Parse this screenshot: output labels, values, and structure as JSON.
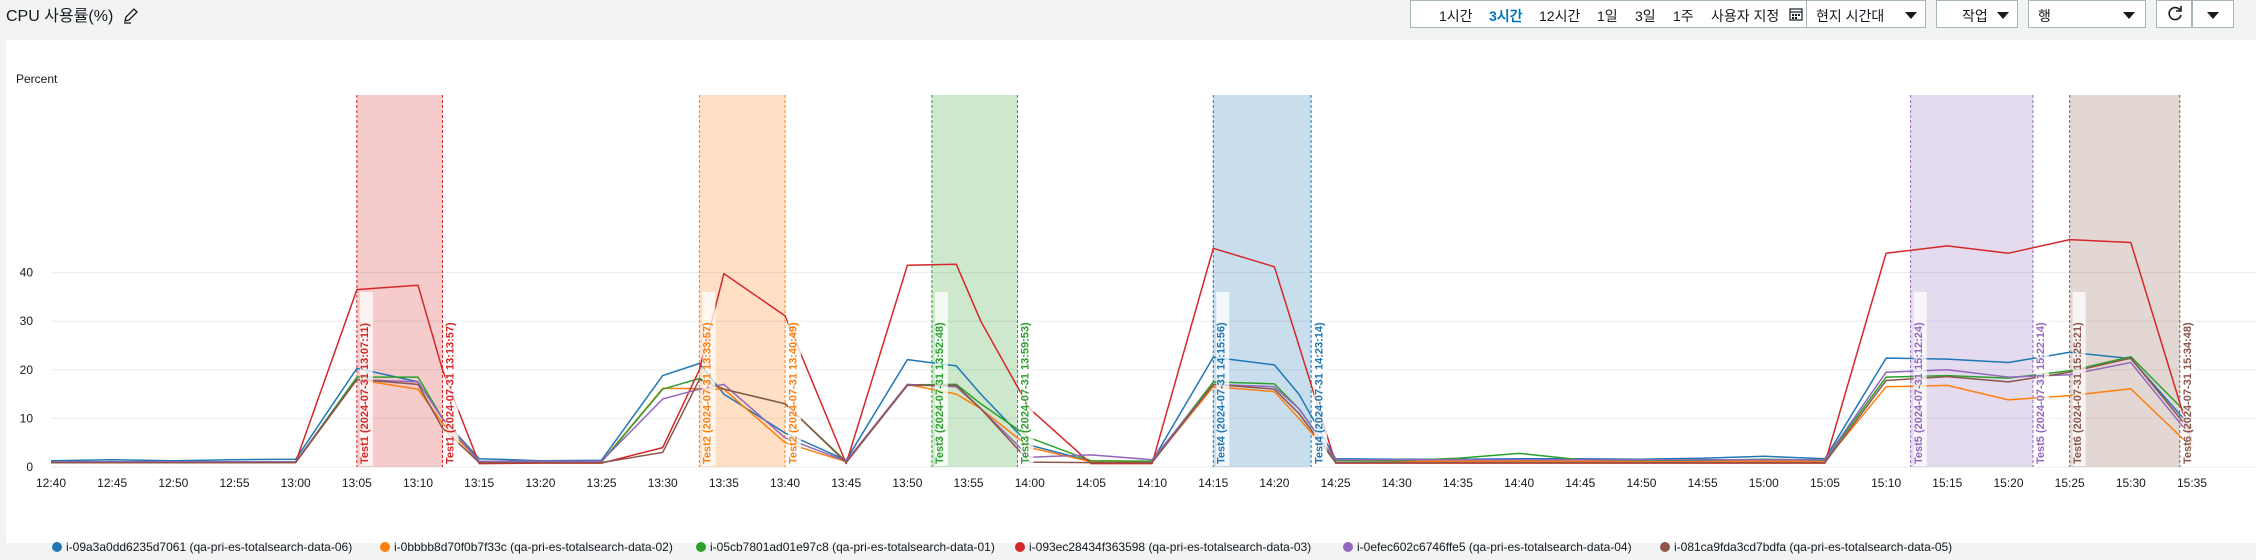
{
  "widget": {
    "title": "CPU 사용률(%)"
  },
  "toolbar": {
    "ranges": [
      {
        "label": "1시간",
        "active": false
      },
      {
        "label": "3시간",
        "active": true
      },
      {
        "label": "12시간",
        "active": false
      },
      {
        "label": "1일",
        "active": false
      },
      {
        "label": "3일",
        "active": false
      },
      {
        "label": "1주",
        "active": false
      },
      {
        "label": "사용자 지정",
        "active": false
      }
    ],
    "timezone_label": "현지 시간대",
    "actions_label": "작업",
    "view_label": "행"
  },
  "colors": {
    "accent": "#0073bb"
  },
  "chart_data": {
    "type": "line",
    "ylabel": "Percent",
    "ylim": [
      0,
      48
    ],
    "yticks": [
      0,
      10,
      20,
      30,
      40
    ],
    "x_labels": [
      "12:40",
      "12:45",
      "12:50",
      "12:55",
      "13:00",
      "13:05",
      "13:10",
      "13:15",
      "13:20",
      "13:25",
      "13:30",
      "13:35",
      "13:40",
      "13:45",
      "13:50",
      "13:55",
      "14:00",
      "14:05",
      "14:10",
      "14:15",
      "14:20",
      "14:25",
      "14:30",
      "14:35",
      "14:40",
      "14:45",
      "14:50",
      "14:55",
      "15:00",
      "15:05",
      "15:10",
      "15:15",
      "15:20",
      "15:25",
      "15:30",
      "15:35"
    ],
    "x": [
      "12:40",
      "12:45",
      "12:50",
      "12:55",
      "13:00",
      "13:05",
      "13:10",
      "13:12",
      "13:15",
      "13:20",
      "13:25",
      "13:30",
      "13:33",
      "13:35",
      "13:40",
      "13:45",
      "13:50",
      "13:54",
      "13:56",
      "14:00",
      "14:05",
      "14:10",
      "14:15",
      "14:20",
      "14:22",
      "14:25",
      "14:30",
      "14:35",
      "14:40",
      "14:45",
      "14:50",
      "14:55",
      "15:00",
      "15:05",
      "15:10",
      "15:15",
      "15:20",
      "15:25",
      "15:30",
      "15:35"
    ],
    "grid": true,
    "series": [
      {
        "name": "i-09a3a0dd6235d7061 (qa-pri-es-totalsearch-data-06)",
        "color": "#1f77b4",
        "values": [
          1.3,
          1.5,
          1.3,
          1.5,
          1.6,
          20.3,
          17.5,
          10,
          1.7,
          1.3,
          1.4,
          18.8,
          21.3,
          15,
          7,
          1.4,
          22.1,
          20.8,
          15,
          4.5,
          1.2,
          1.2,
          22.6,
          21,
          15,
          1.7,
          1.6,
          1.6,
          1.7,
          1.7,
          1.6,
          1.8,
          2.2,
          1.7,
          22.4,
          22.2,
          21.5,
          23.6,
          22.3,
          8
        ]
      },
      {
        "name": "i-0bbbb8d70f0b7f33c (qa-pri-es-totalsearch-data-02)",
        "color": "#ff7f0e",
        "values": [
          0.9,
          0.9,
          0.9,
          0.9,
          0.9,
          18,
          16,
          9,
          1.2,
          1.1,
          1.1,
          16.2,
          16.1,
          16,
          5,
          1.1,
          17,
          15,
          12,
          4,
          1.1,
          1.1,
          16.5,
          15.5,
          10,
          1.3,
          1.2,
          1.2,
          1.2,
          1.2,
          1.2,
          1.2,
          1.2,
          1.2,
          16.5,
          16.8,
          13.8,
          14.7,
          16.1,
          4
        ]
      },
      {
        "name": "i-05cb7801ad01e97c8 (qa-pri-es-totalsearch-data-01)",
        "color": "#2ca02c",
        "values": [
          0.9,
          0.9,
          0.9,
          0.9,
          1,
          18.5,
          18.5,
          10,
          1.1,
          1,
          1,
          16,
          18.2,
          16,
          13,
          1.1,
          16.9,
          17,
          13,
          6,
          1.3,
          1.2,
          17.5,
          17.1,
          12,
          1.3,
          1.3,
          1.8,
          2.8,
          1.5,
          1.4,
          1.4,
          1.6,
          1.4,
          18.5,
          18.8,
          18.3,
          19.8,
          22.7,
          10
        ]
      },
      {
        "name": "i-093ec28434f363598 (qa-pri-es-totalsearch-data-03)",
        "color": "#d62728",
        "values": [
          0.9,
          0.9,
          0.9,
          0.9,
          1,
          36.5,
          37.4,
          20,
          0.7,
          0.8,
          0.8,
          4,
          20,
          39.8,
          31.1,
          0.7,
          41.5,
          41.7,
          30,
          12,
          0.7,
          0.7,
          45,
          41.2,
          25,
          0.8,
          0.8,
          0.8,
          0.8,
          0.8,
          0.8,
          0.8,
          0.8,
          0.8,
          44,
          45.5,
          44,
          46.8,
          46.2,
          5
        ]
      },
      {
        "name": "i-0efec602c6746ffe5 (qa-pri-es-totalsearch-data-04)",
        "color": "#9467bd",
        "values": [
          1.1,
          1.1,
          1.1,
          1.1,
          1.1,
          18,
          17.5,
          10,
          1.2,
          1.2,
          1.2,
          14,
          16,
          17,
          6,
          1.2,
          17,
          16.5,
          12,
          2,
          2.5,
          1.5,
          17,
          16.5,
          12,
          1.5,
          1.5,
          1.5,
          1.5,
          1.5,
          1.5,
          1.5,
          1.5,
          1.5,
          19.5,
          20,
          18.5,
          19,
          21.5,
          6
        ]
      },
      {
        "name": "i-081ca9fda3cd7bdfa (qa-pri-es-totalsearch-data-05)",
        "color": "#8c564b",
        "values": [
          0.9,
          0.9,
          0.9,
          0.9,
          0.9,
          18,
          17,
          8,
          0.9,
          0.9,
          0.9,
          3,
          18,
          16,
          13,
          0.9,
          16.8,
          16.8,
          12,
          1,
          0.9,
          0.9,
          17,
          16,
          11,
          0.9,
          0.9,
          0.9,
          0.9,
          0.9,
          0.9,
          0.9,
          0.9,
          0.9,
          17.8,
          18.6,
          17.5,
          19.5,
          22.4,
          7
        ]
      }
    ],
    "annotations": [
      {
        "start": "13:05",
        "end": "13:12",
        "color": "#d62728",
        "start_label": "Test1 (2024-07-31 13:07:11)",
        "end_label": "Test1 (2024-07-31 13:13:57)"
      },
      {
        "start": "13:33",
        "end": "13:40",
        "color": "#ff7f0e",
        "start_label": "Test2 (2024-07-31 13:33:57)",
        "end_label": "Test2 (2024-07-31 13:40:49)"
      },
      {
        "start": "13:52",
        "end": "13:59",
        "color": "#2ca02c",
        "start_label": "Test3 (2024-07-31 13:52:48)",
        "end_label": "Test3 (2024-07-31 13:59:53)"
      },
      {
        "start": "14:15",
        "end": "14:23",
        "color": "#1f77b4",
        "start_label": "Test4 (2024-07-31 14:15:56)",
        "end_label": "Test4 (2024-07-31 14:23:14)"
      },
      {
        "start": "15:12",
        "end": "15:22",
        "color": "#9467bd",
        "start_label": "Test5 (2024-07-31 15:12:24)",
        "end_label": "Test5 (2024-07-31 15:22:14)"
      },
      {
        "start": "15:25",
        "end": "15:34",
        "color": "#8c564b",
        "start_label": "Test6 (2024-07-31 15:25:21)",
        "end_label": "Test6 (2024-07-31 15:34:48)"
      }
    ]
  }
}
